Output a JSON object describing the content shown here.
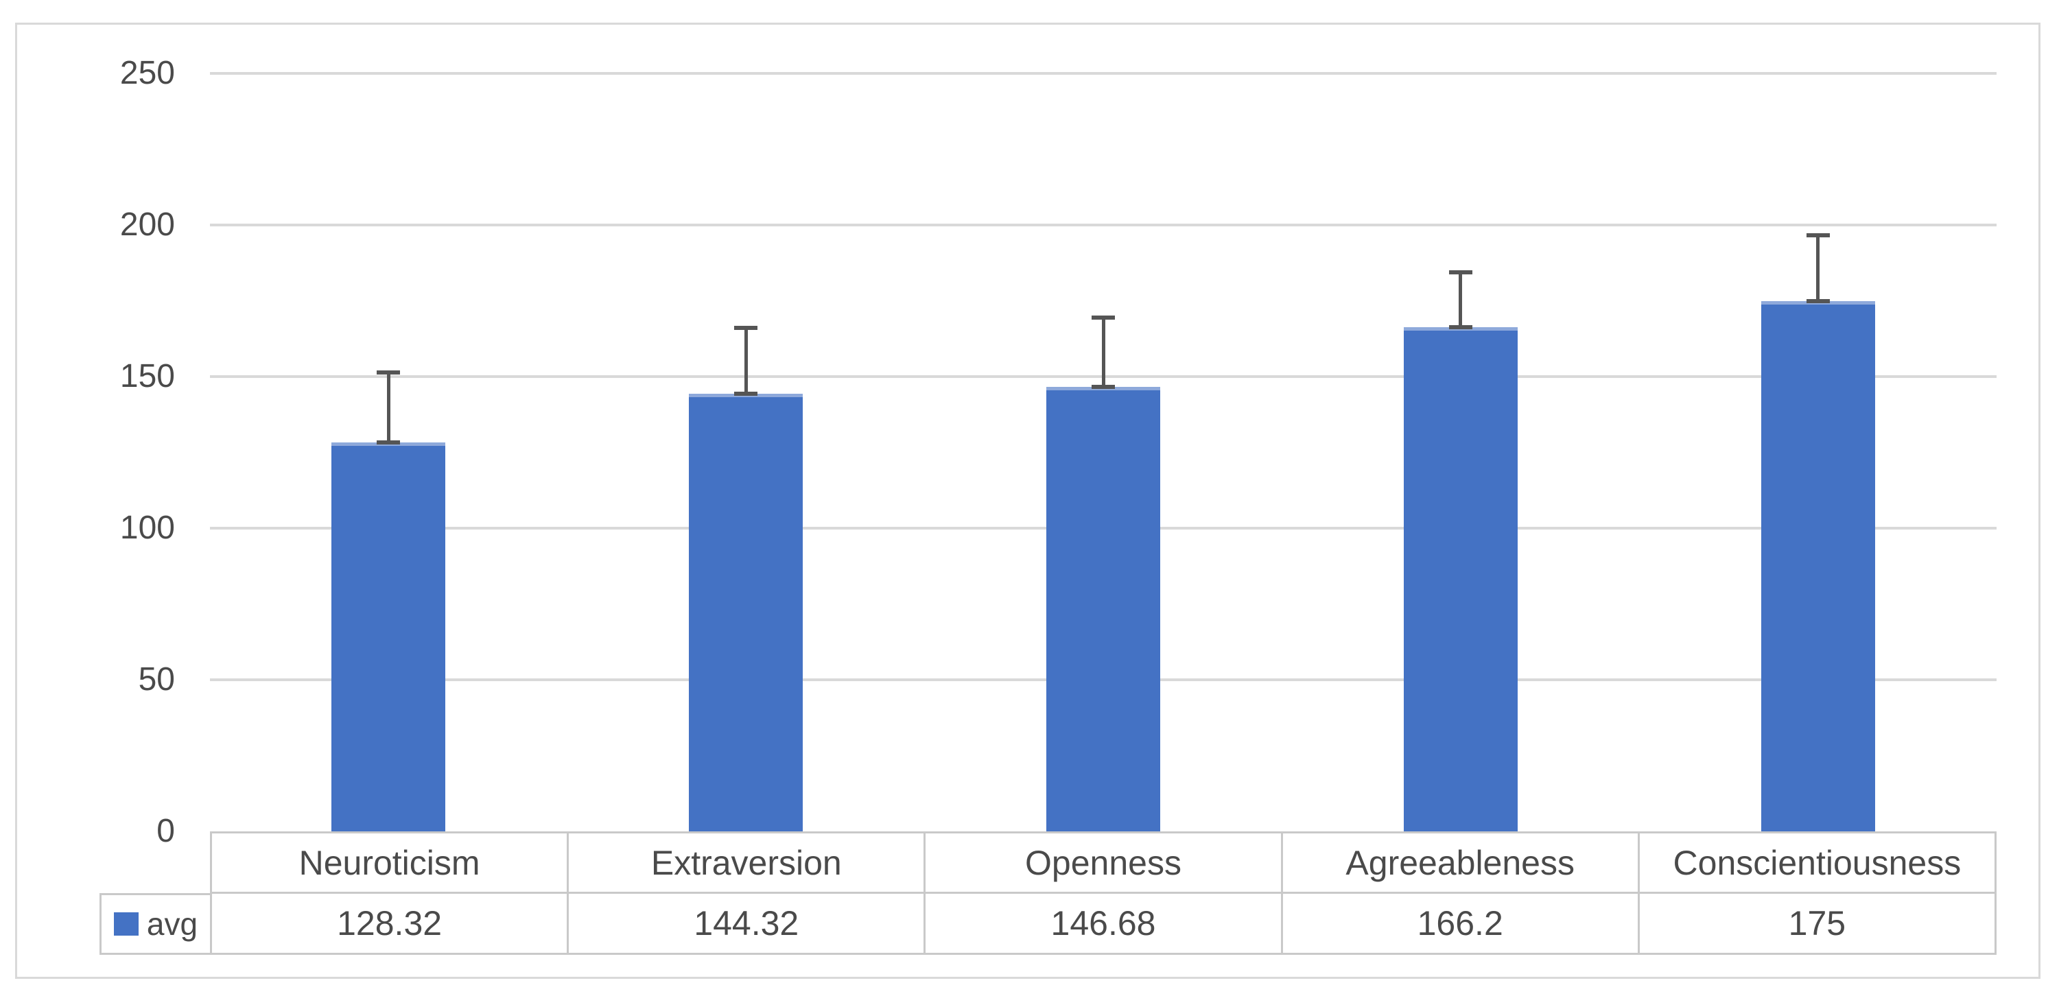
{
  "chart_data": {
    "type": "bar",
    "title": "",
    "xlabel": "",
    "ylabel": "",
    "categories": [
      "Neuroticism",
      "Extraversion",
      "Openness",
      "Agreeableness",
      "Conscientiousness"
    ],
    "series": [
      {
        "name": "avg",
        "values": [
          128.32,
          144.32,
          146.68,
          166.2,
          175
        ],
        "error_plus": [
          23.1,
          21.7,
          22.8,
          18.3,
          21.6
        ]
      }
    ],
    "ylim": [
      0,
      250
    ],
    "yticks": [
      0,
      50,
      100,
      150,
      200,
      250
    ],
    "grid": true,
    "legend_position": "data-table-left",
    "colors": {
      "bar": "#4472C4",
      "bar_top_edge": "#8EA9DB",
      "error_bar": "#555555",
      "gridline": "#D9D9D9",
      "chart_border": "#D9D9D9",
      "table_border": "#C9C9C9",
      "text": "#4a4a4a"
    },
    "data_table": {
      "legend_label": "avg",
      "headers": [
        "Neuroticism",
        "Extraversion",
        "Openness",
        "Agreeableness",
        "Conscientiousness"
      ],
      "values": [
        "128.32",
        "144.32",
        "146.68",
        "166.2",
        "175"
      ]
    }
  }
}
